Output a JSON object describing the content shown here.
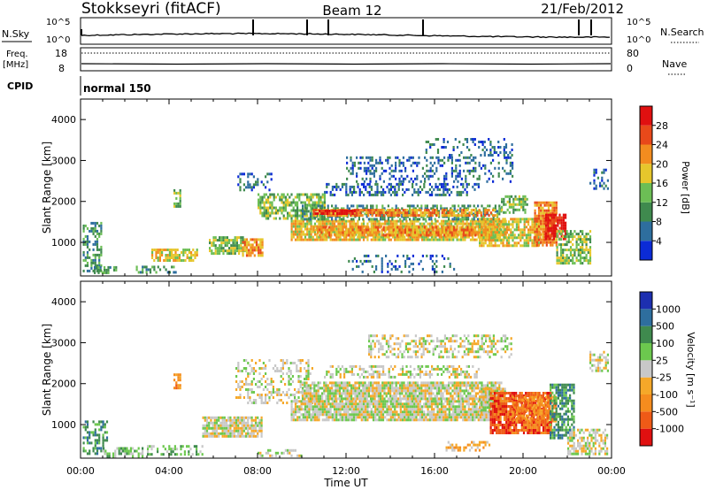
{
  "header": {
    "title": "Stokkseyri (fitACF)",
    "beam": "Beam 12",
    "date": "21/Feb/2012"
  },
  "nsky_panel": {
    "left_label": "N.Sky",
    "left_ticks": [
      "10^5",
      "10^0"
    ],
    "right_label": "N.Search",
    "right_ticks": [
      "10^5",
      "10^0"
    ]
  },
  "freq_panel": {
    "left_label_line1": "Freq.",
    "left_label_line2": "[MHz]",
    "left_ticks": [
      "18",
      "8"
    ],
    "right_label": "Nave",
    "right_ticks": [
      "80",
      "0"
    ]
  },
  "cpid": {
    "label": "CPID",
    "mode": "normal 150"
  },
  "colors": {
    "power_scale": [
      "#0b2bd6",
      "#2e6e9e",
      "#3f8a4e",
      "#6cbe55",
      "#e6c62c",
      "#f28c1f",
      "#e8491a",
      "#e01010"
    ],
    "velocity_scale": [
      "#e01010",
      "#ef5a17",
      "#f58c1e",
      "#f5a829",
      "#c8c8c8",
      "#6cc84e",
      "#3f8a4e",
      "#2e6e9e",
      "#1d2fb0"
    ]
  },
  "chart_data": [
    {
      "type": "heatmap",
      "name": "power",
      "ylabel": "Slant Range [km]",
      "xlabel": "",
      "ylim": [
        180,
        4500
      ],
      "xlim": [
        0,
        24
      ],
      "y_ticks": [
        "1000",
        "2000",
        "3000",
        "4000"
      ],
      "colorbar_label": "Power [dB]",
      "colorbar_ticks": [
        "4",
        "8",
        "12",
        "16",
        "20",
        "24",
        "28"
      ],
      "patches": [
        {
          "t0": 0.1,
          "t1": 0.9,
          "r0": 300,
          "r1": 1500,
          "v": 2,
          "d": 0.5
        },
        {
          "t0": 0.6,
          "t1": 1.6,
          "r0": 250,
          "r1": 420,
          "v": 2,
          "d": 0.5
        },
        {
          "t0": 2.5,
          "t1": 4.3,
          "r0": 300,
          "r1": 430,
          "v": 2,
          "d": 0.55
        },
        {
          "t0": 3.2,
          "t1": 5.3,
          "r0": 560,
          "r1": 850,
          "v": 4,
          "d": 0.7
        },
        {
          "t0": 4.2,
          "t1": 4.5,
          "r0": 1900,
          "r1": 2300,
          "v": 3,
          "d": 0.6
        },
        {
          "t0": 5.8,
          "t1": 7.4,
          "r0": 700,
          "r1": 1150,
          "v": 3,
          "d": 0.75
        },
        {
          "t0": 7.3,
          "t1": 8.2,
          "r0": 700,
          "r1": 1100,
          "v": 5,
          "d": 0.8
        },
        {
          "t0": 7.0,
          "t1": 8.6,
          "r0": 2300,
          "r1": 2700,
          "v": 1,
          "d": 0.35
        },
        {
          "t0": 8.0,
          "t1": 11.0,
          "r0": 1600,
          "r1": 2200,
          "v": 3,
          "d": 0.65
        },
        {
          "t0": 9.5,
          "t1": 19.2,
          "r0": 1050,
          "r1": 1550,
          "v": 4,
          "d": 0.85
        },
        {
          "t0": 10.5,
          "t1": 18.5,
          "r0": 1200,
          "r1": 1400,
          "v": 5,
          "d": 0.75
        },
        {
          "t0": 10.0,
          "t1": 19.0,
          "r0": 1550,
          "r1": 1920,
          "v": 2,
          "d": 0.55
        },
        {
          "t0": 10.5,
          "t1": 18.8,
          "r0": 1650,
          "r1": 1820,
          "v": 5,
          "d": 0.75
        },
        {
          "t0": 10.5,
          "t1": 12.5,
          "r0": 1680,
          "r1": 1800,
          "v": 7,
          "d": 0.8
        },
        {
          "t0": 11.0,
          "t1": 18.0,
          "r0": 2150,
          "r1": 2450,
          "v": 1,
          "d": 0.4
        },
        {
          "t0": 12.0,
          "t1": 19.5,
          "r0": 2500,
          "r1": 3100,
          "v": 1,
          "d": 0.3
        },
        {
          "t0": 15.5,
          "t1": 19.5,
          "r0": 3100,
          "r1": 3550,
          "v": 1,
          "d": 0.25
        },
        {
          "t0": 18.0,
          "t1": 20.8,
          "r0": 900,
          "r1": 1600,
          "v": 4,
          "d": 0.75
        },
        {
          "t0": 19.0,
          "t1": 20.2,
          "r0": 1700,
          "r1": 2150,
          "v": 3,
          "d": 0.6
        },
        {
          "t0": 20.5,
          "t1": 21.5,
          "r0": 900,
          "r1": 2000,
          "v": 5,
          "d": 0.85
        },
        {
          "t0": 21.0,
          "t1": 21.9,
          "r0": 1100,
          "r1": 1700,
          "v": 7,
          "d": 0.85
        },
        {
          "t0": 21.5,
          "t1": 23.0,
          "r0": 500,
          "r1": 1300,
          "v": 3,
          "d": 0.65
        },
        {
          "t0": 23.0,
          "t1": 23.8,
          "r0": 2300,
          "r1": 2800,
          "v": 1,
          "d": 0.4
        },
        {
          "t0": 12.0,
          "t1": 17.0,
          "r0": 300,
          "r1": 700,
          "v": 1,
          "d": 0.2
        }
      ]
    },
    {
      "type": "heatmap",
      "name": "velocity",
      "ylabel": "Slant Range [km]",
      "xlabel": "Time UT",
      "ylim": [
        180,
        4500
      ],
      "xlim": [
        0,
        24
      ],
      "y_ticks": [
        "1000",
        "2000",
        "3000",
        "4000"
      ],
      "x_ticks": [
        "00:00",
        "04:00",
        "08:00",
        "12:00",
        "16:00",
        "20:00",
        "00:00"
      ],
      "colorbar_label": "Velocity [m s⁻¹]",
      "colorbar_ticks": [
        "1000",
        "500",
        "100",
        "25",
        "-25",
        "-100",
        "-500",
        "-1000"
      ],
      "patches": [
        {
          "t0": 0.1,
          "t1": 1.2,
          "r0": 300,
          "r1": 1100,
          "v": 6,
          "d": 0.5
        },
        {
          "t0": 1.0,
          "t1": 2.8,
          "r0": 250,
          "r1": 450,
          "v": 5,
          "d": 0.5
        },
        {
          "t0": 3.0,
          "t1": 5.5,
          "r0": 300,
          "r1": 500,
          "v": 5,
          "d": 0.4
        },
        {
          "t0": 4.2,
          "t1": 4.5,
          "r0": 1900,
          "r1": 2250,
          "v": 2,
          "d": 0.6
        },
        {
          "t0": 5.5,
          "t1": 8.2,
          "r0": 700,
          "r1": 1200,
          "v": 4,
          "d": 0.85
        },
        {
          "t0": 7.0,
          "t1": 10.5,
          "r0": 1500,
          "r1": 2600,
          "v": 4,
          "d": 0.35
        },
        {
          "t0": 9.5,
          "t1": 18.5,
          "r0": 1100,
          "r1": 1600,
          "v": 4,
          "d": 0.9
        },
        {
          "t0": 10.0,
          "t1": 19.0,
          "r0": 1650,
          "r1": 2050,
          "v": 4,
          "d": 0.85
        },
        {
          "t0": 11.0,
          "t1": 18.0,
          "r0": 2150,
          "r1": 2450,
          "v": 4,
          "d": 0.45
        },
        {
          "t0": 13.0,
          "t1": 19.5,
          "r0": 2650,
          "r1": 3200,
          "v": 4,
          "d": 0.4
        },
        {
          "t0": 18.0,
          "t1": 19.2,
          "r0": 1300,
          "r1": 1900,
          "v": 4,
          "d": 0.8
        },
        {
          "t0": 18.5,
          "t1": 21.3,
          "r0": 800,
          "r1": 1800,
          "v": 1,
          "d": 0.85
        },
        {
          "t0": 19.5,
          "t1": 21.5,
          "r0": 1100,
          "r1": 1700,
          "v": 2,
          "d": 0.7
        },
        {
          "t0": 21.2,
          "t1": 22.3,
          "r0": 700,
          "r1": 2000,
          "v": 6,
          "d": 0.7
        },
        {
          "t0": 22.0,
          "t1": 23.8,
          "r0": 300,
          "r1": 900,
          "v": 4,
          "d": 0.6
        },
        {
          "t0": 23.0,
          "t1": 23.8,
          "r0": 2300,
          "r1": 2800,
          "v": 4,
          "d": 0.5
        },
        {
          "t0": 16.5,
          "t1": 18.5,
          "r0": 350,
          "r1": 600,
          "v": 3,
          "d": 0.45
        },
        {
          "t0": 8.0,
          "t1": 10.0,
          "r0": 250,
          "r1": 400,
          "v": 4,
          "d": 0.4
        }
      ]
    }
  ]
}
